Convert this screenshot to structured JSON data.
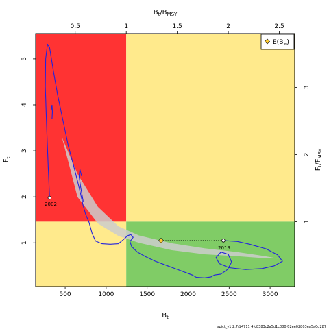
{
  "chart_data": {
    "type": "line",
    "xlabel": "B",
    "xlabel_sub": "t",
    "ylabel": "F",
    "ylabel_sub": "t",
    "top_label": "B",
    "top_label_sub": "t",
    "top_label_mid": "/B",
    "top_label_sub2": "MSY",
    "right_label": "F",
    "right_label_sub": "t",
    "right_label_mid": "/F",
    "right_label_sub2": "MSY",
    "xlim": [
      140,
      3300
    ],
    "ylim": [
      0.05,
      5.55
    ],
    "bmsy": 1245,
    "fmsy": 1.46,
    "x_ticks": [
      500,
      1000,
      1500,
      2000,
      2500,
      3000
    ],
    "x_tick_labels": [
      "500",
      "1000",
      "1500",
      "2000",
      "2500",
      "3000"
    ],
    "y_ticks": [
      1,
      2,
      3,
      4,
      5
    ],
    "y_tick_labels": [
      "1",
      "2",
      "3",
      "4",
      "5"
    ],
    "top_ticks": [
      0.5,
      1,
      1.5,
      2,
      2.5
    ],
    "top_tick_labels": [
      "0.5",
      "1",
      "1.5",
      "2",
      "2.5"
    ],
    "right_ticks": [
      1,
      2,
      3
    ],
    "right_tick_labels": [
      "1",
      "2",
      "3"
    ],
    "colors": {
      "overfished_overfishing": "#ff3333",
      "warning": "#ffea8c",
      "sustainable": "#80cc66",
      "trajectory": "#2222dd",
      "ci_band": "#cccccc",
      "equilibrium_marker": "#ffcc33"
    },
    "legend": {
      "label": "E(B",
      "label_sub": "∞",
      "label_close": ")",
      "position": "top-right"
    },
    "start_point": {
      "label": "2002",
      "x": 310,
      "y": 1.98
    },
    "end_point": {
      "label": "2019",
      "x": 2430,
      "y": 1.05
    },
    "equilibrium": {
      "x": 1670,
      "y": 1.05
    },
    "trajectory": [
      [
        310,
        1.98
      ],
      [
        295,
        2.6
      ],
      [
        275,
        3.5
      ],
      [
        258,
        4.4
      ],
      [
        262,
        5.0
      ],
      [
        285,
        5.32
      ],
      [
        310,
        5.25
      ],
      [
        360,
        4.7
      ],
      [
        410,
        4.2
      ],
      [
        480,
        3.6
      ],
      [
        540,
        3.1
      ],
      [
        600,
        2.7
      ],
      [
        650,
        2.35
      ],
      [
        690,
        2.05
      ],
      [
        720,
        1.8
      ],
      [
        750,
        1.62
      ],
      [
        790,
        1.45
      ],
      [
        830,
        1.2
      ],
      [
        870,
        1.04
      ],
      [
        950,
        0.98
      ],
      [
        1050,
        0.97
      ],
      [
        1150,
        0.98
      ],
      [
        1230,
        1.1
      ],
      [
        1255,
        1.15
      ],
      [
        1300,
        1.18
      ],
      [
        1330,
        1.12
      ],
      [
        1290,
        1.03
      ],
      [
        1310,
        0.92
      ],
      [
        1380,
        0.8
      ],
      [
        1480,
        0.7
      ],
      [
        1600,
        0.6
      ],
      [
        1750,
        0.5
      ],
      [
        1900,
        0.4
      ],
      [
        2050,
        0.3
      ],
      [
        2100,
        0.25
      ],
      [
        2200,
        0.24
      ],
      [
        2280,
        0.26
      ],
      [
        2320,
        0.3
      ],
      [
        2400,
        0.32
      ],
      [
        2480,
        0.42
      ],
      [
        2530,
        0.58
      ],
      [
        2490,
        0.75
      ],
      [
        2400,
        0.8
      ],
      [
        2340,
        0.68
      ],
      [
        2380,
        0.55
      ],
      [
        2500,
        0.46
      ],
      [
        2700,
        0.42
      ],
      [
        2900,
        0.44
      ],
      [
        3050,
        0.5
      ],
      [
        3150,
        0.6
      ],
      [
        3090,
        0.74
      ],
      [
        2950,
        0.87
      ],
      [
        2750,
        0.97
      ],
      [
        2600,
        1.03
      ],
      [
        2430,
        1.05
      ]
    ],
    "trajectory_loop": [
      [
        700,
        2.45
      ],
      [
        680,
        2.6
      ],
      [
        670,
        2.45
      ],
      [
        690,
        2.2
      ],
      [
        720,
        1.9
      ]
    ],
    "trajectory_hook": [
      [
        340,
        3.7
      ],
      [
        345,
        3.85
      ],
      [
        340,
        4.0
      ],
      [
        330,
        3.88
      ]
    ],
    "ci_upper": [
      [
        460,
        3.3
      ],
      [
        650,
        2.5
      ],
      [
        900,
        1.78
      ],
      [
        1150,
        1.36
      ],
      [
        1400,
        1.16
      ],
      [
        1800,
        0.99
      ],
      [
        2200,
        0.88
      ],
      [
        2600,
        0.8
      ],
      [
        2900,
        0.72
      ],
      [
        3100,
        0.66
      ]
    ],
    "ci_lower": [
      [
        3100,
        0.66
      ],
      [
        2900,
        0.67
      ],
      [
        2600,
        0.71
      ],
      [
        2200,
        0.75
      ],
      [
        1800,
        0.84
      ],
      [
        1400,
        1.0
      ],
      [
        1150,
        1.15
      ],
      [
        900,
        1.42
      ],
      [
        650,
        2.0
      ],
      [
        460,
        3.3
      ]
    ],
    "footer": "spict_v1.2.7@4711 4fc8383c2a5d1c080f02ee02803ea5a0d287"
  }
}
